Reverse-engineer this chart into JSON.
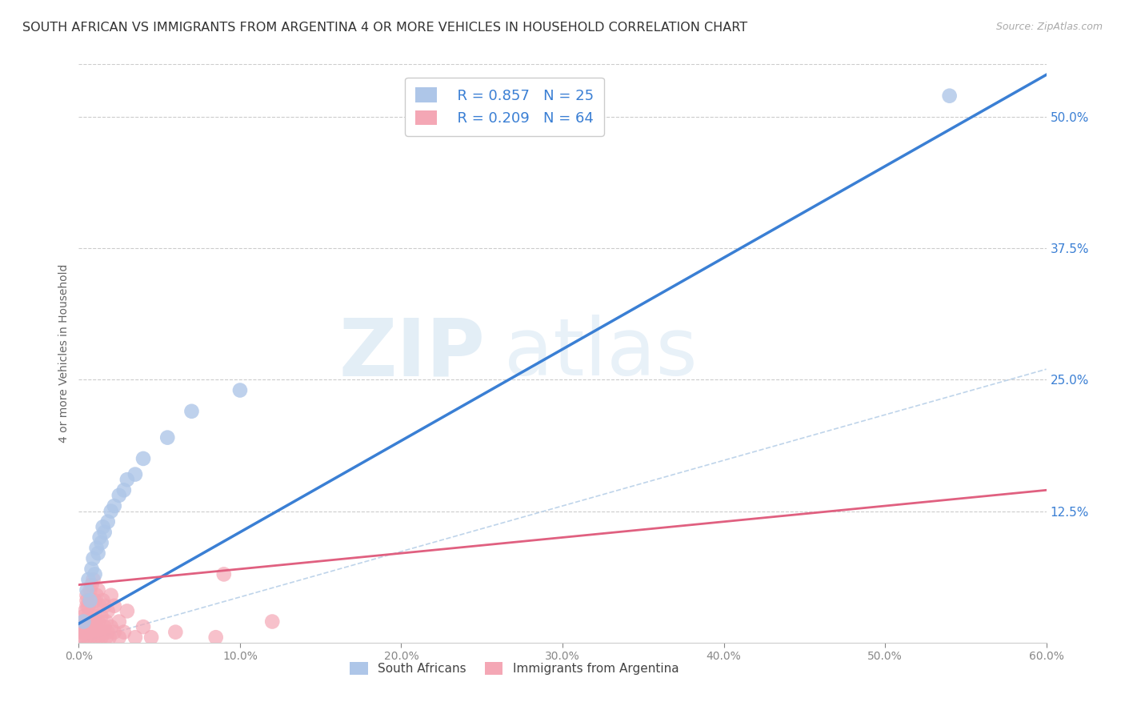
{
  "title": "SOUTH AFRICAN VS IMMIGRANTS FROM ARGENTINA 4 OR MORE VEHICLES IN HOUSEHOLD CORRELATION CHART",
  "source": "Source: ZipAtlas.com",
  "ylabel": "4 or more Vehicles in Household",
  "xlim": [
    0.0,
    0.6
  ],
  "ylim": [
    0.0,
    0.55
  ],
  "xtick_vals": [
    0.0,
    0.1,
    0.2,
    0.3,
    0.4,
    0.5,
    0.6
  ],
  "ytick_vals": [
    0.125,
    0.25,
    0.375,
    0.5
  ],
  "legend_r1": "R = 0.857",
  "legend_n1": "N = 25",
  "legend_r2": "R = 0.209",
  "legend_n2": "N = 64",
  "color_blue": "#aec6e8",
  "color_pink": "#f4a7b5",
  "line_blue": "#3a7fd4",
  "line_pink": "#e06080",
  "line_dashed": "#b8d0e8",
  "title_color": "#333333",
  "source_color": "#aaaaaa",
  "axis_label_color": "#666666",
  "tick_color_right": "#3a7fd4",
  "sa_points": [
    [
      0.003,
      0.02
    ],
    [
      0.005,
      0.05
    ],
    [
      0.006,
      0.06
    ],
    [
      0.007,
      0.04
    ],
    [
      0.008,
      0.07
    ],
    [
      0.009,
      0.08
    ],
    [
      0.01,
      0.065
    ],
    [
      0.011,
      0.09
    ],
    [
      0.012,
      0.085
    ],
    [
      0.013,
      0.1
    ],
    [
      0.014,
      0.095
    ],
    [
      0.015,
      0.11
    ],
    [
      0.016,
      0.105
    ],
    [
      0.018,
      0.115
    ],
    [
      0.02,
      0.125
    ],
    [
      0.022,
      0.13
    ],
    [
      0.025,
      0.14
    ],
    [
      0.028,
      0.145
    ],
    [
      0.03,
      0.155
    ],
    [
      0.035,
      0.16
    ],
    [
      0.04,
      0.175
    ],
    [
      0.055,
      0.195
    ],
    [
      0.07,
      0.22
    ],
    [
      0.1,
      0.24
    ],
    [
      0.54,
      0.52
    ]
  ],
  "arg_points": [
    [
      0.001,
      0.005
    ],
    [
      0.002,
      0.01
    ],
    [
      0.002,
      0.015
    ],
    [
      0.003,
      0.005
    ],
    [
      0.003,
      0.02
    ],
    [
      0.003,
      0.025
    ],
    [
      0.004,
      0.01
    ],
    [
      0.004,
      0.015
    ],
    [
      0.004,
      0.03
    ],
    [
      0.005,
      0.005
    ],
    [
      0.005,
      0.02
    ],
    [
      0.005,
      0.035
    ],
    [
      0.005,
      0.04
    ],
    [
      0.005,
      0.045
    ],
    [
      0.006,
      0.01
    ],
    [
      0.006,
      0.015
    ],
    [
      0.006,
      0.025
    ],
    [
      0.006,
      0.035
    ],
    [
      0.007,
      0.005
    ],
    [
      0.007,
      0.02
    ],
    [
      0.007,
      0.04
    ],
    [
      0.007,
      0.05
    ],
    [
      0.008,
      0.015
    ],
    [
      0.008,
      0.03
    ],
    [
      0.008,
      0.055
    ],
    [
      0.009,
      0.01
    ],
    [
      0.009,
      0.02
    ],
    [
      0.009,
      0.06
    ],
    [
      0.01,
      0.005
    ],
    [
      0.01,
      0.025
    ],
    [
      0.01,
      0.04
    ],
    [
      0.011,
      0.015
    ],
    [
      0.011,
      0.045
    ],
    [
      0.012,
      0.005
    ],
    [
      0.012,
      0.02
    ],
    [
      0.012,
      0.05
    ],
    [
      0.013,
      0.01
    ],
    [
      0.013,
      0.035
    ],
    [
      0.014,
      0.005
    ],
    [
      0.014,
      0.025
    ],
    [
      0.015,
      0.01
    ],
    [
      0.015,
      0.04
    ],
    [
      0.016,
      0.015
    ],
    [
      0.016,
      0.035
    ],
    [
      0.017,
      0.005
    ],
    [
      0.017,
      0.02
    ],
    [
      0.018,
      0.01
    ],
    [
      0.018,
      0.03
    ],
    [
      0.019,
      0.005
    ],
    [
      0.02,
      0.015
    ],
    [
      0.02,
      0.045
    ],
    [
      0.022,
      0.01
    ],
    [
      0.022,
      0.035
    ],
    [
      0.025,
      0.005
    ],
    [
      0.025,
      0.02
    ],
    [
      0.028,
      0.01
    ],
    [
      0.03,
      0.03
    ],
    [
      0.035,
      0.005
    ],
    [
      0.04,
      0.015
    ],
    [
      0.045,
      0.005
    ],
    [
      0.06,
      0.01
    ],
    [
      0.085,
      0.005
    ],
    [
      0.09,
      0.065
    ],
    [
      0.12,
      0.02
    ]
  ],
  "sa_line": [
    [
      0.0,
      0.018
    ],
    [
      0.6,
      0.54
    ]
  ],
  "arg_line": [
    [
      0.0,
      0.055
    ],
    [
      0.6,
      0.145
    ]
  ],
  "dash_line": [
    [
      0.0,
      0.0
    ],
    [
      0.6,
      0.26
    ]
  ]
}
